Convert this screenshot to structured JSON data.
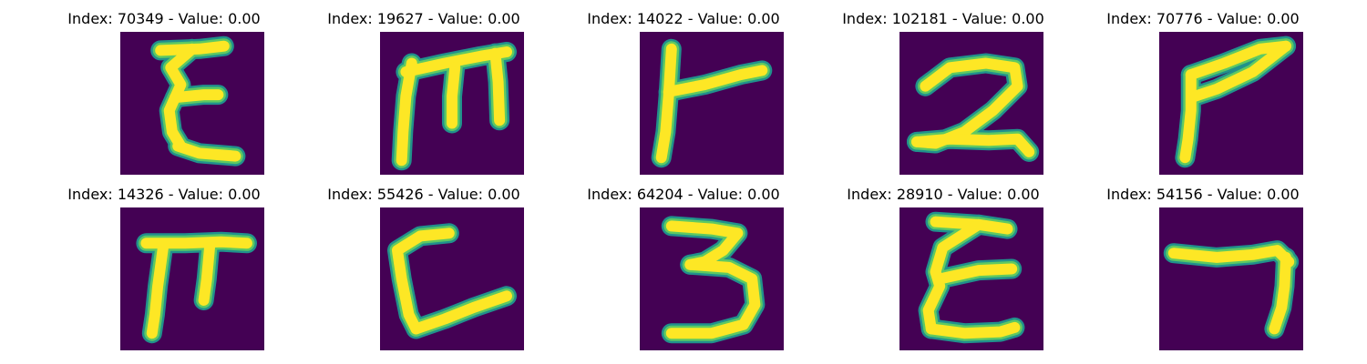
{
  "colormap": {
    "background": "#440154",
    "edge": "#21918c",
    "mid": "#5ec962",
    "stroke": "#fde725"
  },
  "panels": [
    {
      "title": "Index: 70349 - Value: 0.00",
      "glyph": "E",
      "strokes": [
        [
          [
            0.28,
            0.13
          ],
          [
            0.55,
            0.12
          ],
          [
            0.72,
            0.1
          ]
        ],
        [
          [
            0.5,
            0.12
          ],
          [
            0.35,
            0.25
          ],
          [
            0.42,
            0.37
          ],
          [
            0.34,
            0.55
          ],
          [
            0.36,
            0.7
          ],
          [
            0.42,
            0.8
          ]
        ],
        [
          [
            0.38,
            0.46
          ],
          [
            0.58,
            0.44
          ],
          [
            0.68,
            0.44
          ]
        ],
        [
          [
            0.4,
            0.8
          ],
          [
            0.55,
            0.85
          ],
          [
            0.8,
            0.87
          ]
        ]
      ]
    },
    {
      "title": "Index: 19627 - Value: 0.00",
      "glyph": "m",
      "strokes": [
        [
          [
            0.15,
            0.9
          ],
          [
            0.16,
            0.7
          ],
          [
            0.18,
            0.45
          ],
          [
            0.22,
            0.22
          ]
        ],
        [
          [
            0.18,
            0.28
          ],
          [
            0.45,
            0.22
          ],
          [
            0.7,
            0.17
          ],
          [
            0.88,
            0.14
          ]
        ],
        [
          [
            0.52,
            0.25
          ],
          [
            0.5,
            0.45
          ],
          [
            0.5,
            0.64
          ]
        ],
        [
          [
            0.8,
            0.15
          ],
          [
            0.82,
            0.35
          ],
          [
            0.83,
            0.62
          ]
        ]
      ]
    },
    {
      "title": "Index: 14022 - Value: 0.00",
      "glyph": "r",
      "strokes": [
        [
          [
            0.22,
            0.12
          ],
          [
            0.2,
            0.45
          ],
          [
            0.18,
            0.7
          ],
          [
            0.15,
            0.88
          ]
        ],
        [
          [
            0.2,
            0.42
          ],
          [
            0.45,
            0.37
          ],
          [
            0.7,
            0.3
          ],
          [
            0.85,
            0.27
          ]
        ]
      ]
    },
    {
      "title": "Index: 102181 - Value: 0.00",
      "glyph": "2",
      "strokes": [
        [
          [
            0.18,
            0.38
          ],
          [
            0.35,
            0.25
          ],
          [
            0.6,
            0.22
          ],
          [
            0.8,
            0.25
          ],
          [
            0.82,
            0.38
          ],
          [
            0.65,
            0.55
          ],
          [
            0.45,
            0.7
          ],
          [
            0.25,
            0.78
          ],
          [
            0.12,
            0.77
          ]
        ],
        [
          [
            0.12,
            0.77
          ],
          [
            0.35,
            0.75
          ],
          [
            0.62,
            0.76
          ],
          [
            0.82,
            0.75
          ],
          [
            0.9,
            0.84
          ]
        ]
      ]
    },
    {
      "title": "Index: 70776 - Value: 0.00",
      "glyph": "F",
      "strokes": [
        [
          [
            0.22,
            0.3
          ],
          [
            0.22,
            0.55
          ],
          [
            0.2,
            0.75
          ],
          [
            0.18,
            0.88
          ]
        ],
        [
          [
            0.22,
            0.3
          ],
          [
            0.45,
            0.22
          ],
          [
            0.7,
            0.12
          ],
          [
            0.88,
            0.1
          ]
        ],
        [
          [
            0.88,
            0.1
          ],
          [
            0.65,
            0.28
          ],
          [
            0.4,
            0.4
          ],
          [
            0.25,
            0.45
          ]
        ]
      ]
    },
    {
      "title": "Index: 14326 - Value: 0.00",
      "glyph": "π",
      "strokes": [
        [
          [
            0.18,
            0.25
          ],
          [
            0.45,
            0.25
          ],
          [
            0.7,
            0.24
          ],
          [
            0.88,
            0.25
          ]
        ],
        [
          [
            0.3,
            0.26
          ],
          [
            0.26,
            0.55
          ],
          [
            0.24,
            0.75
          ],
          [
            0.22,
            0.88
          ]
        ],
        [
          [
            0.62,
            0.28
          ],
          [
            0.6,
            0.5
          ],
          [
            0.58,
            0.65
          ]
        ]
      ]
    },
    {
      "title": "Index: 55426 - Value: 0.00",
      "glyph": "C",
      "strokes": [
        [
          [
            0.48,
            0.18
          ],
          [
            0.28,
            0.2
          ],
          [
            0.12,
            0.3
          ],
          [
            0.15,
            0.5
          ],
          [
            0.2,
            0.75
          ],
          [
            0.25,
            0.85
          ]
        ],
        [
          [
            0.25,
            0.85
          ],
          [
            0.45,
            0.78
          ],
          [
            0.65,
            0.7
          ],
          [
            0.88,
            0.62
          ]
        ]
      ]
    },
    {
      "title": "Index: 64204 - Value: 0.00",
      "glyph": "3",
      "strokes": [
        [
          [
            0.22,
            0.13
          ],
          [
            0.5,
            0.15
          ],
          [
            0.68,
            0.18
          ],
          [
            0.58,
            0.3
          ],
          [
            0.45,
            0.38
          ],
          [
            0.35,
            0.4
          ]
        ],
        [
          [
            0.35,
            0.4
          ],
          [
            0.62,
            0.42
          ],
          [
            0.78,
            0.5
          ],
          [
            0.8,
            0.68
          ],
          [
            0.72,
            0.82
          ],
          [
            0.5,
            0.88
          ],
          [
            0.22,
            0.88
          ]
        ]
      ]
    },
    {
      "title": "Index: 28910 - Value: 0.00",
      "glyph": "E",
      "strokes": [
        [
          [
            0.25,
            0.1
          ],
          [
            0.55,
            0.12
          ],
          [
            0.75,
            0.15
          ]
        ],
        [
          [
            0.55,
            0.12
          ],
          [
            0.3,
            0.28
          ],
          [
            0.25,
            0.45
          ],
          [
            0.28,
            0.55
          ],
          [
            0.2,
            0.72
          ],
          [
            0.22,
            0.85
          ]
        ],
        [
          [
            0.28,
            0.5
          ],
          [
            0.55,
            0.44
          ],
          [
            0.78,
            0.43
          ]
        ],
        [
          [
            0.22,
            0.85
          ],
          [
            0.45,
            0.88
          ],
          [
            0.7,
            0.87
          ],
          [
            0.8,
            0.84
          ]
        ]
      ]
    },
    {
      "title": "Index: 54156 - Value: 0.00",
      "glyph": "7",
      "strokes": [
        [
          [
            0.1,
            0.32
          ],
          [
            0.4,
            0.35
          ],
          [
            0.65,
            0.33
          ],
          [
            0.82,
            0.3
          ],
          [
            0.9,
            0.38
          ]
        ],
        [
          [
            0.88,
            0.35
          ],
          [
            0.87,
            0.55
          ],
          [
            0.85,
            0.7
          ],
          [
            0.8,
            0.85
          ]
        ]
      ]
    }
  ]
}
